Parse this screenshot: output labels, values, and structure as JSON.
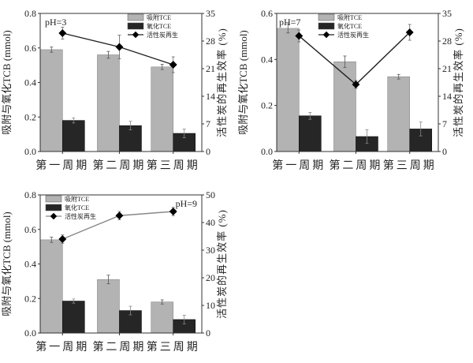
{
  "chart_data": [
    {
      "type": "bar",
      "annotation": "pH=3",
      "categories": [
        "第一周期",
        "第二周期",
        "第三周期"
      ],
      "ylabel": "吸附与氧化TCB (mmol)",
      "y2label": "活性炭的再生效率 (%)",
      "ylim": [
        0,
        0.8
      ],
      "yticks": [
        "0.0",
        "0.2",
        "0.4",
        "0.6",
        "0.8"
      ],
      "y2lim": [
        0,
        35
      ],
      "y2ticks": [
        "0",
        "7",
        "14",
        "21",
        "28",
        "35"
      ],
      "legend_position": "top-right",
      "series": [
        {
          "name": "吸附TCE",
          "kind": "bar",
          "axis": "left",
          "color": "#b3b3b3",
          "values": [
            0.59,
            0.56,
            0.49
          ],
          "errors": [
            0.015,
            0.02,
            0.015
          ]
        },
        {
          "name": "氧化TCE",
          "kind": "bar",
          "axis": "left",
          "color": "#262626",
          "values": [
            0.18,
            0.15,
            0.105
          ],
          "errors": [
            0.015,
            0.025,
            0.025
          ]
        },
        {
          "name": "活性炭再生",
          "kind": "line",
          "axis": "right",
          "color": "#222222",
          "values": [
            30,
            26.5,
            22
          ],
          "errors": [
            1.5,
            3,
            2
          ]
        }
      ]
    },
    {
      "type": "bar",
      "annotation": "pH=7",
      "categories": [
        "第一周期",
        "第二周期",
        "第三周期"
      ],
      "ylabel": "吸附与氧化TCB (mmol)",
      "y2label": "活性炭的再生效率 (%)",
      "ylim": [
        0,
        0.6
      ],
      "yticks": [
        "0.0",
        "0.2",
        "0.4",
        "0.6"
      ],
      "y2lim": [
        0,
        35
      ],
      "y2ticks": [
        "0",
        "7",
        "14",
        "21",
        "28",
        "35"
      ],
      "legend_position": "top-center",
      "series": [
        {
          "name": "吸附TCE",
          "kind": "bar",
          "axis": "left",
          "color": "#b3b3b3",
          "values": [
            0.535,
            0.39,
            0.325
          ],
          "errors": [
            0.02,
            0.025,
            0.01
          ]
        },
        {
          "name": "氧化TCE",
          "kind": "bar",
          "axis": "left",
          "color": "#262626",
          "values": [
            0.155,
            0.065,
            0.098
          ],
          "errors": [
            0.015,
            0.03,
            0.03
          ]
        },
        {
          "name": "活性炭再生",
          "kind": "line",
          "axis": "right",
          "color": "#222222",
          "values": [
            29.3,
            17,
            30.2
          ],
          "errors": [
            1.5,
            1,
            2
          ]
        }
      ]
    },
    {
      "type": "bar",
      "annotation": "pH=9",
      "categories": [
        "第一周期",
        "第二周期",
        "第三周期"
      ],
      "ylabel": "吸附与氧化TCB (mmol)",
      "y2label": "活性炭的再生效率 (%)",
      "ylim": [
        0,
        0.8
      ],
      "yticks": [
        "0.0",
        "0.2",
        "0.4",
        "0.6",
        "0.8"
      ],
      "y2lim": [
        0,
        50
      ],
      "y2ticks": [
        "0",
        "10",
        "20",
        "30",
        "40",
        "50"
      ],
      "legend_position": "top-left",
      "series": [
        {
          "name": "吸附TCE",
          "kind": "bar",
          "axis": "left",
          "color": "#b3b3b3",
          "values": [
            0.54,
            0.31,
            0.18
          ],
          "errors": [
            0.015,
            0.025,
            0.012
          ]
        },
        {
          "name": "氧化TCE",
          "kind": "bar",
          "axis": "left",
          "color": "#262626",
          "values": [
            0.185,
            0.13,
            0.078
          ],
          "errors": [
            0.012,
            0.025,
            0.025
          ]
        },
        {
          "name": "活性炭再生",
          "kind": "line",
          "axis": "right",
          "color": "#888888",
          "values": [
            34,
            42.5,
            44
          ],
          "errors": [
            1.5,
            1.5,
            1.5
          ]
        }
      ]
    }
  ]
}
